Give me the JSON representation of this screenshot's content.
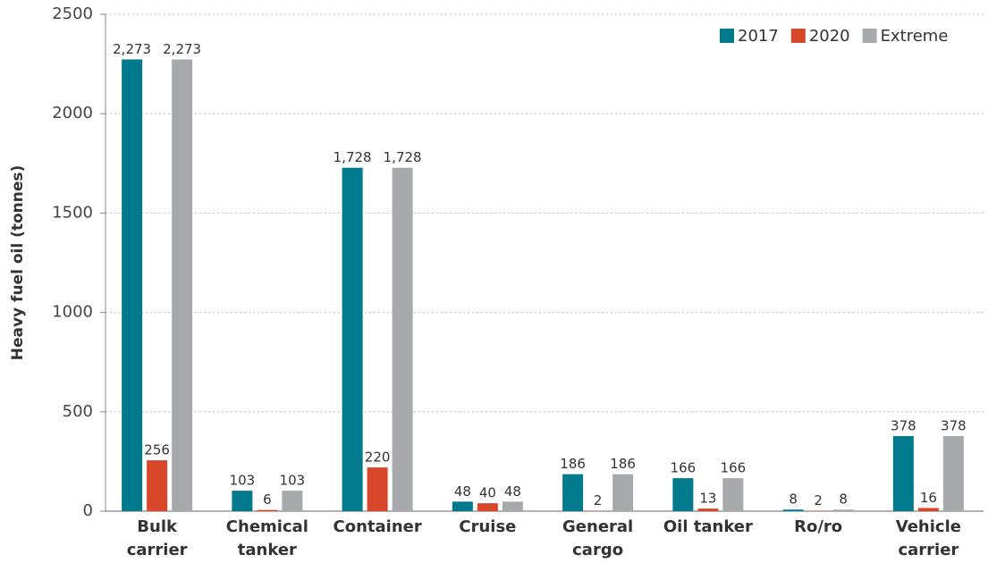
{
  "chart_data": {
    "type": "bar",
    "y_label": "Heavy fuel oil (tonnes)",
    "categories": [
      [
        "Bulk",
        "carrier"
      ],
      [
        "Chemical",
        "tanker"
      ],
      [
        "Container"
      ],
      [
        "Cruise"
      ],
      [
        "General",
        "cargo"
      ],
      [
        "Oil tanker"
      ],
      [
        "Ro/ro"
      ],
      [
        "Vehicle",
        "carrier"
      ]
    ],
    "series": [
      {
        "name": "2017",
        "color": "#007a8c",
        "values": [
          2273,
          103,
          1728,
          48,
          186,
          166,
          8,
          378
        ],
        "value_labels": [
          "2,273",
          "103",
          "1,728",
          "48",
          "186",
          "166",
          "8",
          "378"
        ]
      },
      {
        "name": "2020",
        "color": "#d9472b",
        "values": [
          256,
          6,
          220,
          40,
          2,
          13,
          2,
          16
        ],
        "value_labels": [
          "256",
          "6",
          "220",
          "40",
          "2",
          "13",
          "2",
          "16"
        ]
      },
      {
        "name": "Extreme",
        "color": "#a7a9ac",
        "values": [
          2273,
          103,
          1728,
          48,
          186,
          166,
          8,
          378
        ],
        "value_labels": [
          "2,273",
          "103",
          "1,728",
          "48",
          "186",
          "166",
          "8",
          "378"
        ]
      }
    ],
    "ylim": [
      0,
      2500
    ],
    "yticks": [
      0,
      500,
      1000,
      1500,
      2000,
      2500
    ],
    "grid": true,
    "legend": "upper right"
  }
}
